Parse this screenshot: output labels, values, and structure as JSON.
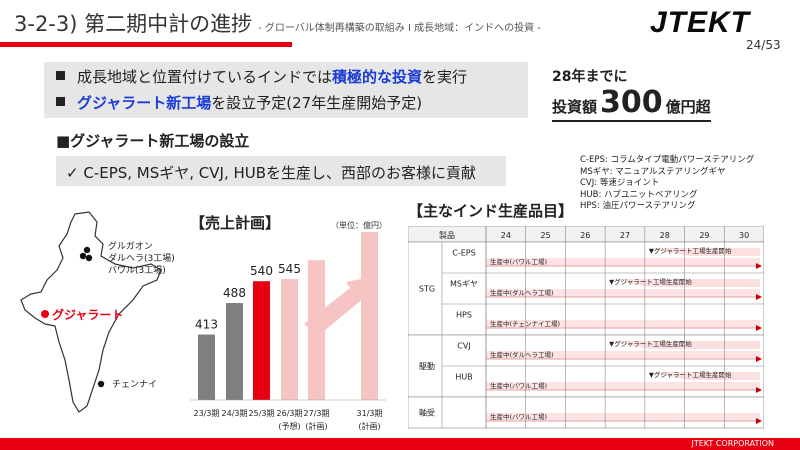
{
  "header": {
    "title": "3-2-3) 第二期中計の進捗",
    "subtitle": "- グローバル体制再構築の取組み Ⅰ 成長地域：インドへの投資 -",
    "logo_text": "JTEKT",
    "page": "24/53"
  },
  "highlights": {
    "line1_pre": "成長地域と位置付けているインドでは",
    "line1_em": "積極的な投資",
    "line1_post": "を実行",
    "line2_em": "グジャラート新工場",
    "line2_post": "を設立予定(27年生産開始予定)"
  },
  "investment": {
    "by": "28年までに",
    "label": "投資額",
    "amount": "300",
    "unit": "億円超"
  },
  "section": {
    "title": "■グジャラート新工場の設立",
    "bullet": "✓ C-EPS, MSギヤ, CVJ, HUBを生産し、西部のお客様に貢献"
  },
  "legend": [
    "C-EPS: コラムタイプ電動パワーステアリング",
    "MSギヤ: マニュアルステアリングギヤ",
    "CVJ: 等速ジョイント",
    "HUB: ハブユニットベアリング",
    "HPS: 油圧パワーステアリング"
  ],
  "map": {
    "north_label_1": "グルガオン",
    "north_label_2": "ダルヘラ(3工場)",
    "north_label_3": "バワル(3工場)",
    "gujarat_label": "グジャラート",
    "south_label": "チェンナイ"
  },
  "sales": {
    "title": "【売上計画】",
    "unit": "（単位：億円）"
  },
  "chart_data": {
    "type": "bar",
    "categories": [
      "23/3期",
      "24/3期",
      "25/3期",
      "26/3期\n(予想)",
      "27/3期\n(計画)",
      "31/3期\n(計画)"
    ],
    "values": [
      413,
      488,
      540,
      545,
      null,
      null
    ],
    "value_labels": [
      "413",
      "488",
      "540",
      "545",
      "",
      ""
    ],
    "colors": [
      "#7f7f7f",
      "#7f7f7f",
      "#e60012",
      "#f7c4c4",
      "#f7c4c4",
      "#f7c4c4"
    ],
    "accent": "#e60012"
  },
  "schedule": {
    "title": "【主なインド生産品目】",
    "header_product": "製品",
    "years": [
      "24",
      "25",
      "26",
      "27",
      "28",
      "29",
      "30"
    ],
    "groups": [
      {
        "name": "STG",
        "items": [
          "C-EPS",
          "MSギヤ",
          "HPS"
        ]
      },
      {
        "name": "駆動",
        "items": [
          "CVJ",
          "HUB"
        ]
      },
      {
        "name": "軸受",
        "items": [
          ""
        ]
      }
    ],
    "bars": [
      {
        "label": "生産中(バワル工場)",
        "start_note": "▼グジャラート工場生産開始"
      },
      {
        "label": "生産中(ダルヘラ工場)",
        "start_note": "▼グジャラート工場生産開始"
      },
      {
        "label": "生産中(チェンナイ工場)",
        "start_note": ""
      },
      {
        "label": "生産中(ダルヘラ工場)",
        "start_note": "▼グジャラート工場生産開始"
      },
      {
        "label": "生産中(バワル工場)",
        "start_note": "▼グジャラート工場生産開始"
      },
      {
        "label": "生産中(バワル工場)",
        "start_note": ""
      }
    ],
    "start_years": [
      "28",
      "27",
      "",
      "27",
      "28",
      ""
    ]
  },
  "footer": {
    "text": "JTEKT CORPORATION"
  }
}
